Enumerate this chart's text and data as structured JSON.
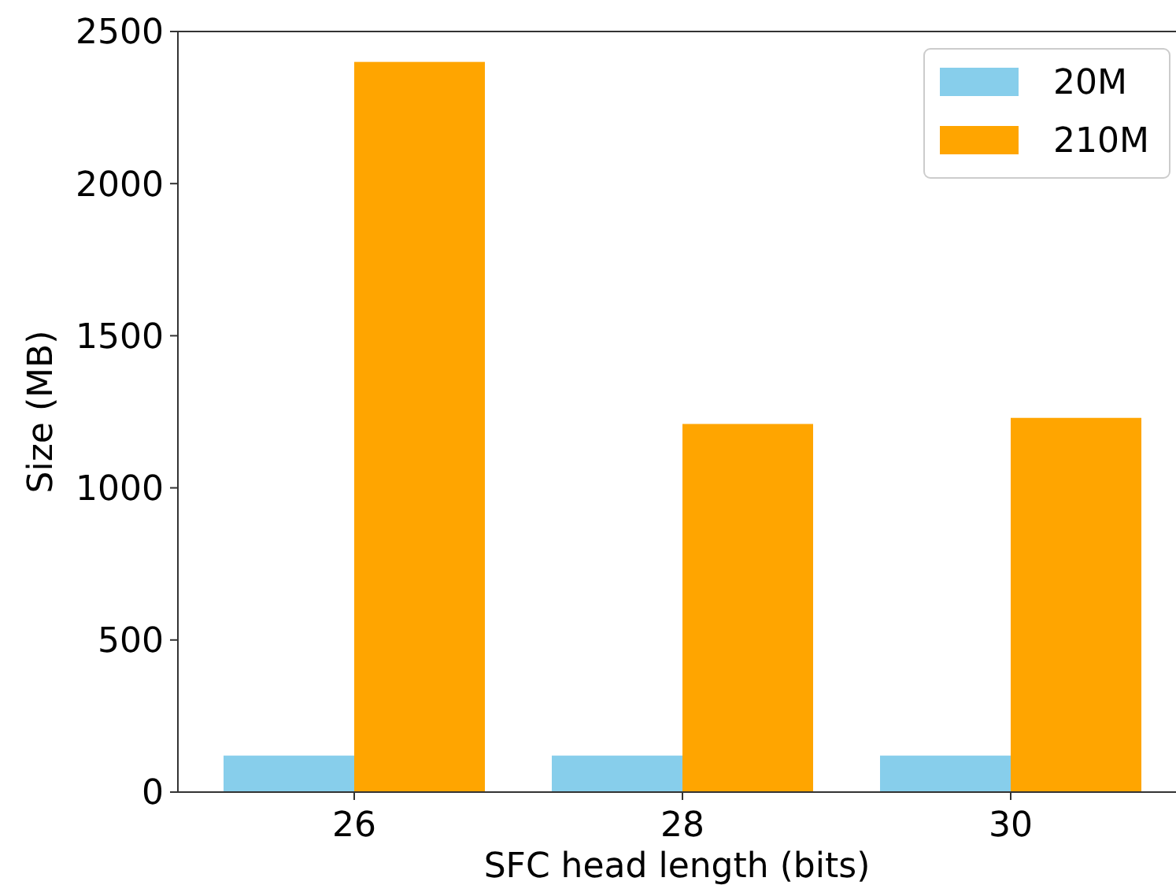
{
  "chart_data": {
    "type": "bar",
    "xlabel": "SFC head length (bits)",
    "ylabel": "Size (MB)",
    "categories": [
      "26",
      "28",
      "30"
    ],
    "series": [
      {
        "name": "20M",
        "color": "#87ceeb",
        "values": [
          120,
          120,
          120
        ]
      },
      {
        "name": "210M",
        "color": "#ffa500",
        "values": [
          2400,
          1210,
          1230
        ]
      }
    ],
    "ylim": [
      0,
      2500
    ],
    "yticks": [
      0,
      500,
      1000,
      1500,
      2000,
      2500
    ],
    "legend": "top right",
    "grid": false
  }
}
